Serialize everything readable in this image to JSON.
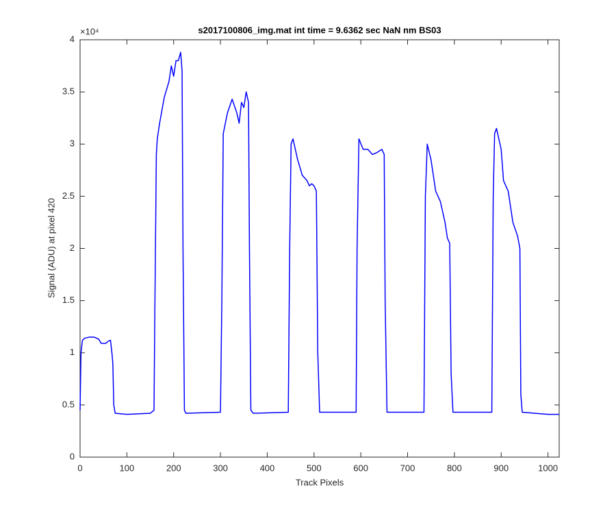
{
  "chart_data": {
    "type": "line",
    "title": "s2017100806_img.mat int time = 9.6362 sec  NaN nm BS03",
    "x_label": "Track Pixels",
    "y_label": "Signal (ADU) at pixel 420",
    "y_exponent_label": "×10⁴",
    "xlim": [
      0,
      1024
    ],
    "xticks": [
      0,
      100,
      200,
      300,
      400,
      500,
      600,
      700,
      800,
      900,
      1000
    ],
    "ylim": [
      0,
      4
    ],
    "yticks": [
      0,
      0.5,
      1,
      1.5,
      2,
      2.5,
      3,
      3.5,
      4
    ],
    "x": [
      0,
      2,
      5,
      10,
      20,
      30,
      40,
      45,
      55,
      60,
      65,
      68,
      70,
      72,
      75,
      100,
      150,
      158,
      160,
      163,
      165,
      170,
      180,
      190,
      195,
      200,
      205,
      210,
      215,
      218,
      220,
      223,
      226,
      300,
      303,
      306,
      315,
      325,
      335,
      340,
      345,
      350,
      355,
      360,
      362,
      365,
      370,
      445,
      448,
      451,
      455,
      465,
      475,
      485,
      490,
      495,
      500,
      505,
      508,
      512,
      590,
      592,
      596,
      605,
      615,
      625,
      635,
      645,
      650,
      652,
      656,
      735,
      738,
      742,
      750,
      760,
      770,
      780,
      785,
      790,
      793,
      797,
      880,
      883,
      886,
      890,
      900,
      905,
      915,
      925,
      935,
      940,
      942,
      945,
      1000,
      1024
    ],
    "series": [
      {
        "color": "#0000ff",
        "values": [
          0.45,
          1.0,
          1.12,
          1.14,
          1.15,
          1.15,
          1.13,
          1.09,
          1.09,
          1.11,
          1.12,
          1.0,
          0.9,
          0.5,
          0.42,
          0.41,
          0.42,
          0.45,
          1.5,
          2.9,
          3.05,
          3.2,
          3.45,
          3.6,
          3.75,
          3.65,
          3.8,
          3.8,
          3.88,
          3.7,
          2.0,
          0.45,
          0.42,
          0.43,
          1.5,
          3.1,
          3.3,
          3.43,
          3.3,
          3.2,
          3.4,
          3.35,
          3.5,
          3.4,
          2.0,
          0.45,
          0.42,
          0.43,
          2.0,
          3.0,
          3.05,
          2.85,
          2.7,
          2.65,
          2.6,
          2.62,
          2.6,
          2.55,
          1.0,
          0.43,
          0.43,
          2.0,
          3.05,
          2.95,
          2.95,
          2.9,
          2.92,
          2.95,
          2.9,
          1.5,
          0.43,
          0.43,
          2.5,
          3.0,
          2.85,
          2.55,
          2.45,
          2.25,
          2.1,
          2.05,
          0.8,
          0.43,
          0.43,
          2.5,
          3.1,
          3.15,
          2.95,
          2.65,
          2.55,
          2.25,
          2.12,
          2.0,
          0.6,
          0.43,
          0.41,
          0.41
        ]
      }
    ]
  }
}
